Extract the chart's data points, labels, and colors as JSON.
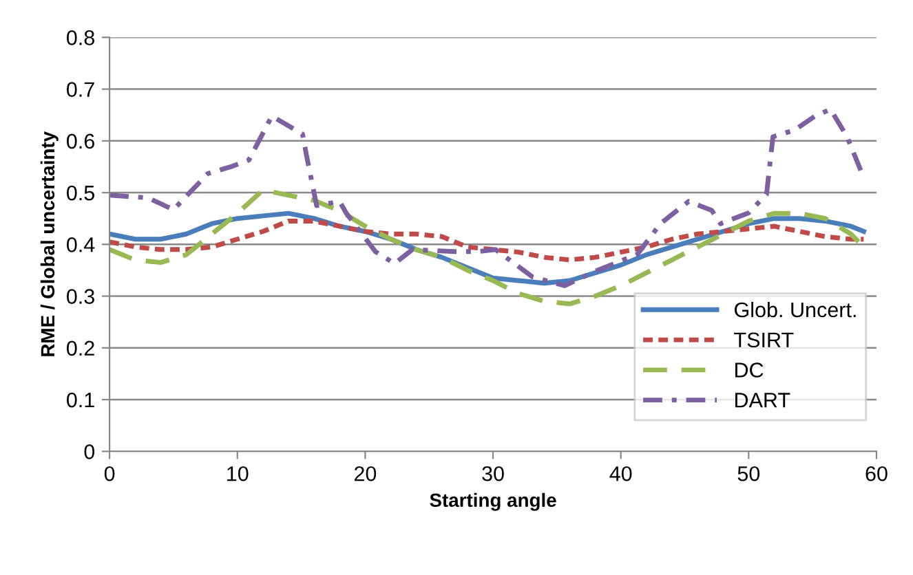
{
  "chart_data": {
    "type": "line",
    "xlabel": "Starting angle",
    "ylabel": "RME / Global uncertainty",
    "xlim": [
      0,
      60
    ],
    "xticks": [
      0,
      10,
      20,
      30,
      40,
      50,
      60
    ],
    "ylim": [
      0,
      0.8
    ],
    "yticks": [
      0,
      0.1,
      0.2,
      0.3,
      0.4,
      0.5,
      0.6,
      0.7,
      0.8
    ],
    "grid": "y",
    "legend": "lower right",
    "marker": "none",
    "series": [
      {
        "name": "Glob. Uncert.",
        "color": "#4a7ebb",
        "line_style": "solid",
        "x": [
          0,
          2,
          4,
          6,
          8,
          10,
          12,
          14,
          16,
          18,
          20,
          22,
          24,
          26,
          28,
          30,
          32,
          34,
          36,
          38,
          40,
          42,
          44,
          46,
          48,
          50,
          52,
          54,
          56,
          58,
          59
        ],
        "values": [
          0.42,
          0.41,
          0.41,
          0.42,
          0.44,
          0.45,
          0.455,
          0.46,
          0.45,
          0.435,
          0.425,
          0.41,
          0.39,
          0.375,
          0.355,
          0.335,
          0.33,
          0.325,
          0.33,
          0.345,
          0.36,
          0.38,
          0.395,
          0.41,
          0.425,
          0.44,
          0.45,
          0.45,
          0.445,
          0.435,
          0.425
        ]
      },
      {
        "name": "TSIRT",
        "color": "#be4b48",
        "line_style": "dotted",
        "x": [
          0,
          2,
          4,
          6,
          8,
          10,
          12,
          14,
          16,
          18,
          20,
          22,
          24,
          26,
          28,
          30,
          32,
          34,
          36,
          38,
          40,
          42,
          44,
          46,
          48,
          50,
          52,
          54,
          56,
          58,
          59
        ],
        "values": [
          0.405,
          0.395,
          0.39,
          0.39,
          0.395,
          0.41,
          0.425,
          0.445,
          0.445,
          0.435,
          0.425,
          0.42,
          0.42,
          0.415,
          0.395,
          0.39,
          0.385,
          0.375,
          0.37,
          0.375,
          0.385,
          0.395,
          0.41,
          0.42,
          0.425,
          0.43,
          0.435,
          0.425,
          0.415,
          0.41,
          0.41
        ]
      },
      {
        "name": "DC",
        "color": "#98b954",
        "line_style": "dashed",
        "x": [
          0,
          2,
          4,
          6,
          8,
          10,
          12,
          14,
          16,
          18,
          20,
          22,
          24,
          26,
          28,
          30,
          32,
          34,
          36,
          38,
          40,
          42,
          44,
          46,
          48,
          50,
          52,
          54,
          56,
          58,
          59
        ],
        "values": [
          0.39,
          0.37,
          0.365,
          0.38,
          0.42,
          0.46,
          0.505,
          0.495,
          0.485,
          0.465,
          0.435,
          0.41,
          0.39,
          0.375,
          0.35,
          0.33,
          0.305,
          0.29,
          0.285,
          0.3,
          0.32,
          0.345,
          0.37,
          0.395,
          0.42,
          0.445,
          0.46,
          0.46,
          0.45,
          0.42,
          0.395
        ]
      },
      {
        "name": "DART",
        "color": "#7d60a0",
        "line_style": "dashdot",
        "x": [
          0,
          3,
          5,
          7.7,
          9.5,
          10.9,
          12.7,
          15.1,
          15.4,
          16.2,
          18,
          18.5,
          20.8,
          22.3,
          23.7,
          27,
          28.8,
          30.2,
          33.1,
          35.6,
          37.8,
          41.3,
          43.1,
          45.3,
          47.1,
          47.8,
          50,
          51.4,
          51.9,
          53.6,
          55.2,
          56.4,
          57.7,
          58.8
        ],
        "values": [
          0.495,
          0.49,
          0.467,
          0.537,
          0.55,
          0.563,
          0.648,
          0.613,
          0.573,
          0.475,
          0.483,
          0.461,
          0.386,
          0.363,
          0.39,
          0.386,
          0.386,
          0.39,
          0.337,
          0.32,
          0.346,
          0.381,
          0.44,
          0.483,
          0.466,
          0.44,
          0.461,
          0.497,
          0.608,
          0.621,
          0.648,
          0.661,
          0.608,
          0.541
        ]
      }
    ]
  }
}
